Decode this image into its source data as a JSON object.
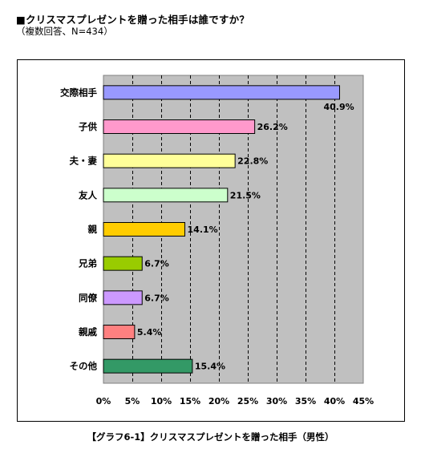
{
  "header": {
    "title": "■クリスマスプレゼントを贈った相手は誰ですか？",
    "subtitle": "（複数回答、N=434）"
  },
  "caption": "【グラフ6-1】クリスマスプレゼントを贈った相手（男性）",
  "chart_data": {
    "type": "bar",
    "orientation": "horizontal",
    "categories": [
      "交際相手",
      "子供",
      "夫・妻",
      "友人",
      "親",
      "兄弟",
      "同僚",
      "親戚",
      "その他"
    ],
    "values": [
      40.9,
      26.2,
      22.8,
      21.5,
      14.1,
      6.7,
      6.7,
      5.4,
      15.4
    ],
    "value_labels": [
      "40.9%",
      "26.2%",
      "22.8%",
      "21.5%",
      "14.1%",
      "6.7%",
      "6.7%",
      "5.4%",
      "15.4%"
    ],
    "colors": [
      "#9999ff",
      "#ff99cc",
      "#ffff99",
      "#ccffcc",
      "#ffcc00",
      "#99cc00",
      "#cc99ff",
      "#ff8080",
      "#339966"
    ],
    "xlim": [
      0,
      45
    ],
    "xticks": [
      0,
      5,
      10,
      15,
      20,
      25,
      30,
      35,
      40,
      45
    ],
    "xtick_labels": [
      "0%",
      "5%",
      "10%",
      "15%",
      "20%",
      "25%",
      "30%",
      "35%",
      "40%",
      "45%"
    ],
    "plot_background": "#c0c0c0",
    "grid": "vertical-dashed"
  }
}
